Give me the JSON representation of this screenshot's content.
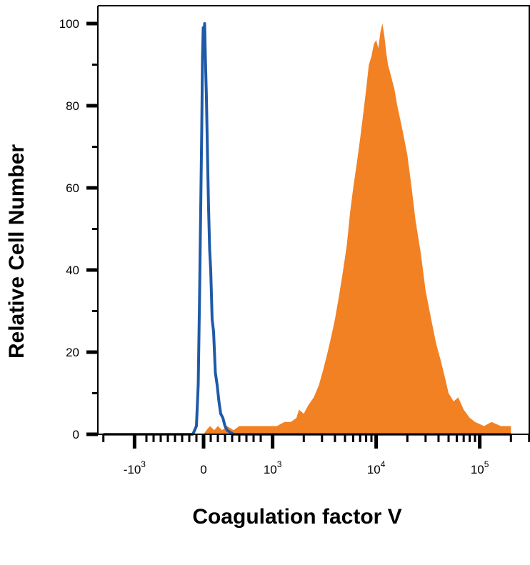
{
  "chart_data": {
    "type": "area",
    "xlabel": "Coagulation factor V",
    "ylabel": "Relative Cell Number",
    "x_scale": "biexponential",
    "ylim": [
      0,
      100
    ],
    "yticks": [
      {
        "value": 0,
        "label": "0"
      },
      {
        "value": 20,
        "label": "20"
      },
      {
        "value": 40,
        "label": "40"
      },
      {
        "value": 60,
        "label": "60"
      },
      {
        "value": 80,
        "label": "80"
      },
      {
        "value": 100,
        "label": "100"
      }
    ],
    "xticks": [
      {
        "value": -1000,
        "base": "-10",
        "exp": "3"
      },
      {
        "value": 0,
        "base": "0",
        "exp": ""
      },
      {
        "value": 1000,
        "base": "10",
        "exp": "3"
      },
      {
        "value": 10000,
        "base": "10",
        "exp": "4"
      },
      {
        "value": 100000,
        "base": "10",
        "exp": "5"
      }
    ],
    "grid": false,
    "series": [
      {
        "color": "#1f5aa8",
        "style": "line",
        "points": [
          [
            -2000,
            0
          ],
          [
            -150,
            0
          ],
          [
            -100,
            2
          ],
          [
            -75,
            12
          ],
          [
            -55,
            35
          ],
          [
            -40,
            55
          ],
          [
            -25,
            75
          ],
          [
            -15,
            92
          ],
          [
            -5,
            99
          ],
          [
            5,
            97
          ],
          [
            15,
            100
          ],
          [
            25,
            92
          ],
          [
            40,
            82
          ],
          [
            55,
            68
          ],
          [
            70,
            55
          ],
          [
            85,
            45
          ],
          [
            100,
            40
          ],
          [
            120,
            28
          ],
          [
            140,
            25
          ],
          [
            165,
            15
          ],
          [
            190,
            12
          ],
          [
            215,
            8
          ],
          [
            240,
            5
          ],
          [
            270,
            4
          ],
          [
            300,
            2
          ],
          [
            330,
            1
          ],
          [
            370,
            0.5
          ],
          [
            420,
            0
          ],
          [
            200000,
            0
          ]
        ]
      },
      {
        "color": "#f28124",
        "style": "filled",
        "points": [
          [
            -2000,
            0
          ],
          [
            0,
            0
          ],
          [
            40,
            1
          ],
          [
            90,
            2
          ],
          [
            150,
            1
          ],
          [
            200,
            2
          ],
          [
            260,
            1
          ],
          [
            330,
            2
          ],
          [
            420,
            1
          ],
          [
            500,
            2
          ],
          [
            700,
            2
          ],
          [
            900,
            2
          ],
          [
            1100,
            2
          ],
          [
            1300,
            3
          ],
          [
            1500,
            3
          ],
          [
            1700,
            4
          ],
          [
            1800,
            6
          ],
          [
            2000,
            5
          ],
          [
            2200,
            7
          ],
          [
            2500,
            9
          ],
          [
            2800,
            12
          ],
          [
            3100,
            16
          ],
          [
            3400,
            20
          ],
          [
            3700,
            24
          ],
          [
            4000,
            28
          ],
          [
            4400,
            34
          ],
          [
            4800,
            40
          ],
          [
            5200,
            46
          ],
          [
            5600,
            54
          ],
          [
            6000,
            60
          ],
          [
            6500,
            66
          ],
          [
            7000,
            72
          ],
          [
            7500,
            78
          ],
          [
            8000,
            84
          ],
          [
            8500,
            90
          ],
          [
            9000,
            92
          ],
          [
            9500,
            95
          ],
          [
            10000,
            96
          ],
          [
            10500,
            94
          ],
          [
            11000,
            98
          ],
          [
            11500,
            100
          ],
          [
            12000,
            97
          ],
          [
            12500,
            93
          ],
          [
            13000,
            90
          ],
          [
            14000,
            87
          ],
          [
            15000,
            84
          ],
          [
            16000,
            80
          ],
          [
            18000,
            74
          ],
          [
            20000,
            68
          ],
          [
            22000,
            60
          ],
          [
            24000,
            52
          ],
          [
            27000,
            44
          ],
          [
            30000,
            35
          ],
          [
            34000,
            28
          ],
          [
            38000,
            22
          ],
          [
            42000,
            18
          ],
          [
            46000,
            14
          ],
          [
            50000,
            10
          ],
          [
            56000,
            8
          ],
          [
            62000,
            9
          ],
          [
            70000,
            6
          ],
          [
            80000,
            4
          ],
          [
            90000,
            3
          ],
          [
            110000,
            2
          ],
          [
            130000,
            3
          ],
          [
            160000,
            2
          ],
          [
            200000,
            2
          ]
        ]
      }
    ]
  }
}
